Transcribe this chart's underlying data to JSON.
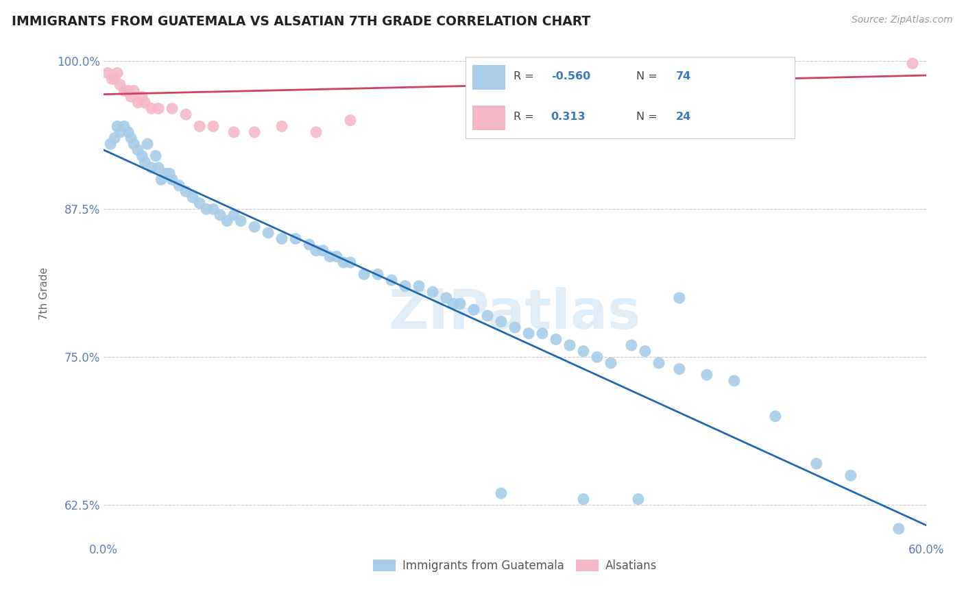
{
  "title": "IMMIGRANTS FROM GUATEMALA VS ALSATIAN 7TH GRADE CORRELATION CHART",
  "source": "Source: ZipAtlas.com",
  "ylabel": "7th Grade",
  "xlim": [
    0.0,
    0.6
  ],
  "ylim": [
    0.595,
    1.012
  ],
  "ytick_values": [
    0.625,
    0.75,
    0.875,
    1.0
  ],
  "xtick_values": [
    0.0,
    0.1,
    0.2,
    0.3,
    0.4,
    0.5,
    0.6
  ],
  "blue_R": -0.56,
  "blue_N": 74,
  "pink_R": 0.313,
  "pink_N": 24,
  "blue_color": "#a8cce8",
  "pink_color": "#f5b8c8",
  "blue_line_color": "#2068b0",
  "pink_line_color": "#d04060",
  "watermark": "ZIPatlas",
  "legend_label_blue": "Immigrants from Guatemala",
  "legend_label_pink": "Alsatians",
  "blue_line_x0": 0.0,
  "blue_line_y0": 0.925,
  "blue_line_x1": 0.6,
  "blue_line_y1": 0.608,
  "pink_line_x0": 0.0,
  "pink_line_y0": 0.972,
  "pink_line_x1": 0.6,
  "pink_line_y1": 0.988,
  "blue_scatter_x": [
    0.005,
    0.008,
    0.01,
    0.012,
    0.015,
    0.018,
    0.02,
    0.022,
    0.025,
    0.028,
    0.03,
    0.032,
    0.035,
    0.038,
    0.04,
    0.042,
    0.045,
    0.048,
    0.05,
    0.055,
    0.06,
    0.065,
    0.07,
    0.075,
    0.08,
    0.085,
    0.09,
    0.095,
    0.1,
    0.11,
    0.12,
    0.13,
    0.14,
    0.15,
    0.155,
    0.16,
    0.165,
    0.17,
    0.175,
    0.18,
    0.19,
    0.2,
    0.21,
    0.22,
    0.23,
    0.24,
    0.25,
    0.255,
    0.26,
    0.27,
    0.28,
    0.29,
    0.3,
    0.31,
    0.32,
    0.33,
    0.34,
    0.35,
    0.36,
    0.37,
    0.385,
    0.395,
    0.405,
    0.42,
    0.44,
    0.46,
    0.49,
    0.52,
    0.545,
    0.58,
    0.42,
    0.39,
    0.35,
    0.29
  ],
  "blue_scatter_y": [
    0.93,
    0.935,
    0.945,
    0.94,
    0.945,
    0.94,
    0.935,
    0.93,
    0.925,
    0.92,
    0.915,
    0.93,
    0.91,
    0.92,
    0.91,
    0.9,
    0.905,
    0.905,
    0.9,
    0.895,
    0.89,
    0.885,
    0.88,
    0.875,
    0.875,
    0.87,
    0.865,
    0.87,
    0.865,
    0.86,
    0.855,
    0.85,
    0.85,
    0.845,
    0.84,
    0.84,
    0.835,
    0.835,
    0.83,
    0.83,
    0.82,
    0.82,
    0.815,
    0.81,
    0.81,
    0.805,
    0.8,
    0.795,
    0.795,
    0.79,
    0.785,
    0.78,
    0.775,
    0.77,
    0.77,
    0.765,
    0.76,
    0.755,
    0.75,
    0.745,
    0.76,
    0.755,
    0.745,
    0.74,
    0.735,
    0.73,
    0.7,
    0.66,
    0.65,
    0.605,
    0.8,
    0.63,
    0.63,
    0.635
  ],
  "pink_scatter_x": [
    0.003,
    0.006,
    0.008,
    0.01,
    0.012,
    0.015,
    0.018,
    0.02,
    0.022,
    0.025,
    0.028,
    0.03,
    0.035,
    0.04,
    0.05,
    0.06,
    0.07,
    0.08,
    0.095,
    0.11,
    0.13,
    0.155,
    0.18,
    0.59
  ],
  "pink_scatter_y": [
    0.99,
    0.985,
    0.985,
    0.99,
    0.98,
    0.975,
    0.975,
    0.97,
    0.975,
    0.965,
    0.97,
    0.965,
    0.96,
    0.96,
    0.96,
    0.955,
    0.945,
    0.945,
    0.94,
    0.94,
    0.945,
    0.94,
    0.95,
    0.998
  ]
}
